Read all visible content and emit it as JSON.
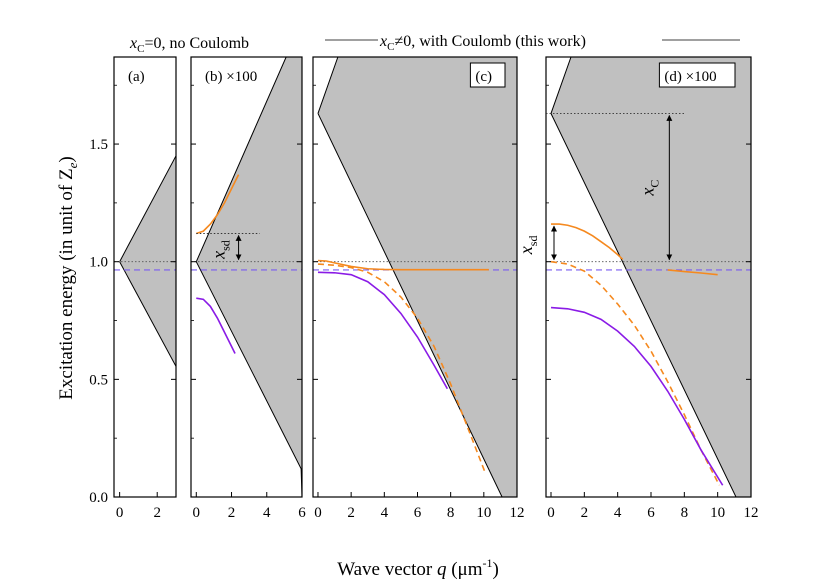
{
  "header": {
    "left_prefix": "x",
    "left_sub": "C",
    "left_suffix": "=0, no Coulomb",
    "right_prefix": "x",
    "right_sub": "C",
    "right_suffix": "≠0, with Coulomb (this work)"
  },
  "colors": {
    "orange": "#f5891f",
    "purple": "#8a1be6",
    "dashed_line": "#7a5cf0",
    "continuum": "#c0c0c0"
  },
  "chart_data": {
    "type": "line",
    "ylabel_main": "Excitation energy (in unit of Z",
    "ylabel_sub": "e",
    "ylabel_end": ")",
    "xlabel_main": "Wave vector ",
    "xlabel_q": "q",
    "xlabel_units": " (μm",
    "xlabel_exp": "-1",
    "xlabel_end": ")",
    "ylim": [
      0,
      1.87
    ],
    "y_ticks": [
      "0.0",
      "0.5",
      "1.0",
      "1.5"
    ],
    "y_tick_values": [
      0.0,
      0.5,
      1.0,
      1.5
    ],
    "reference_levels": {
      "dotted": 1.0,
      "dashed": 0.965
    },
    "panels": [
      {
        "id": "a",
        "label": "(a)",
        "xlim": [
          -0.3,
          3
        ],
        "x_ticks": [
          "0",
          "2"
        ],
        "x_tick_values": [
          0,
          2
        ],
        "continuum_upper": [
          [
            0,
            1.0
          ],
          [
            3,
            1.45
          ]
        ],
        "continuum_lower": [
          [
            0,
            1.0
          ],
          [
            3,
            0.555
          ]
        ],
        "series": []
      },
      {
        "id": "b",
        "label": "(b) ×100",
        "xlim": [
          -0.3,
          6
        ],
        "x_ticks": [
          "0",
          "2",
          "4",
          "6"
        ],
        "x_tick_values": [
          0,
          2,
          4,
          6
        ],
        "continuum_upper": [
          [
            0,
            1.0
          ],
          [
            5.1,
            1.87
          ],
          [
            6,
            1.87
          ]
        ],
        "continuum_lower": [
          [
            0,
            1.0
          ],
          [
            5.95,
            0.12
          ],
          [
            6,
            0.0
          ]
        ],
        "annotation": {
          "text": "x",
          "sub": "sd",
          "y_top": 1.12,
          "y_bottom": 1.0
        },
        "series": [
          {
            "color": "orange",
            "style": "solid",
            "x": [
              0,
              0.4,
              0.8,
              1.2,
              1.6,
              2.0,
              2.4
            ],
            "y": [
              1.12,
              1.13,
              1.16,
              1.2,
              1.25,
              1.31,
              1.37
            ]
          },
          {
            "color": "orange",
            "style": "dotted",
            "x": [
              0,
              3.6
            ],
            "y": [
              1.12,
              1.12
            ]
          },
          {
            "color": "purple",
            "style": "solid",
            "x": [
              0,
              0.4,
              0.8,
              1.2,
              1.6,
              2.0,
              2.2
            ],
            "y": [
              0.845,
              0.84,
              0.81,
              0.76,
              0.7,
              0.64,
              0.61
            ]
          }
        ]
      },
      {
        "id": "c",
        "label": "(c)",
        "xlim": [
          -0.3,
          12
        ],
        "x_ticks": [
          "0",
          "2",
          "4",
          "6",
          "8",
          "10",
          "12"
        ],
        "x_tick_values": [
          0,
          2,
          4,
          6,
          8,
          10,
          12
        ],
        "continuum_upper": [
          [
            0,
            1.63
          ],
          [
            1.2,
            1.87
          ],
          [
            12,
            1.87
          ]
        ],
        "continuum_lower": [
          [
            0,
            1.63
          ],
          [
            11.1,
            0.0
          ],
          [
            12,
            0.0
          ]
        ],
        "series": [
          {
            "color": "orange",
            "style": "solid",
            "x": [
              0,
              0.5,
              1,
              2,
              3,
              4,
              5,
              6,
              7,
              8,
              9,
              10.3
            ],
            "y": [
              1.005,
              1.003,
              0.995,
              0.98,
              0.97,
              0.967,
              0.966,
              0.966,
              0.966,
              0.966,
              0.966,
              0.966
            ]
          },
          {
            "color": "orange",
            "style": "dashed",
            "x": [
              0,
              1,
              2,
              3,
              4,
              5,
              6,
              7,
              8,
              9,
              10.1
            ],
            "y": [
              0.99,
              0.985,
              0.975,
              0.955,
              0.915,
              0.85,
              0.76,
              0.64,
              0.48,
              0.3,
              0.1
            ]
          },
          {
            "color": "purple",
            "style": "solid",
            "x": [
              0,
              1,
              2,
              3,
              4,
              5,
              6,
              7,
              7.8
            ],
            "y": [
              0.955,
              0.953,
              0.945,
              0.915,
              0.86,
              0.78,
              0.68,
              0.56,
              0.46
            ]
          }
        ]
      },
      {
        "id": "d",
        "label": "(d) ×100",
        "xlim": [
          -0.3,
          12
        ],
        "x_ticks": [
          "0",
          "2",
          "4",
          "6",
          "8",
          "10",
          "12"
        ],
        "x_tick_values": [
          0,
          2,
          4,
          6,
          8,
          10,
          12
        ],
        "continuum_upper": [
          [
            0,
            1.63
          ],
          [
            1.2,
            1.87
          ],
          [
            12,
            1.87
          ]
        ],
        "continuum_lower": [
          [
            0,
            1.63
          ],
          [
            11.1,
            0.0
          ],
          [
            12,
            0.0
          ]
        ],
        "annotation_sd": {
          "text": "x",
          "sub": "sd",
          "y_top": 1.16,
          "y_bottom": 1.0
        },
        "annotation_c": {
          "text": "x",
          "sub": "C",
          "y_top": 1.63,
          "y_bottom": 1.0
        },
        "series": [
          {
            "color": "orange",
            "style": "solid",
            "x": [
              0,
              0.5,
              1,
              1.5,
              2,
              2.5,
              3,
              3.5,
              4,
              4.3
            ],
            "y": [
              1.16,
              1.16,
              1.155,
              1.145,
              1.13,
              1.11,
              1.085,
              1.06,
              1.03,
              1.01
            ]
          },
          {
            "color": "orange",
            "style": "solid",
            "x": [
              7,
              8,
              9,
              10
            ],
            "y": [
              0.965,
              0.958,
              0.952,
              0.945
            ]
          },
          {
            "color": "orange",
            "style": "dashed",
            "x": [
              0,
              1,
              2,
              3,
              4,
              5,
              6,
              7,
              8,
              9,
              10.1
            ],
            "y": [
              1.0,
              0.99,
              0.96,
              0.9,
              0.82,
              0.73,
              0.62,
              0.49,
              0.35,
              0.2,
              0.05
            ]
          },
          {
            "color": "purple",
            "style": "solid",
            "x": [
              0,
              1,
              2,
              3,
              4,
              5,
              6,
              7,
              8,
              9,
              10.3
            ],
            "y": [
              0.805,
              0.8,
              0.785,
              0.755,
              0.705,
              0.64,
              0.555,
              0.45,
              0.33,
              0.2,
              0.05
            ]
          }
        ]
      }
    ]
  }
}
